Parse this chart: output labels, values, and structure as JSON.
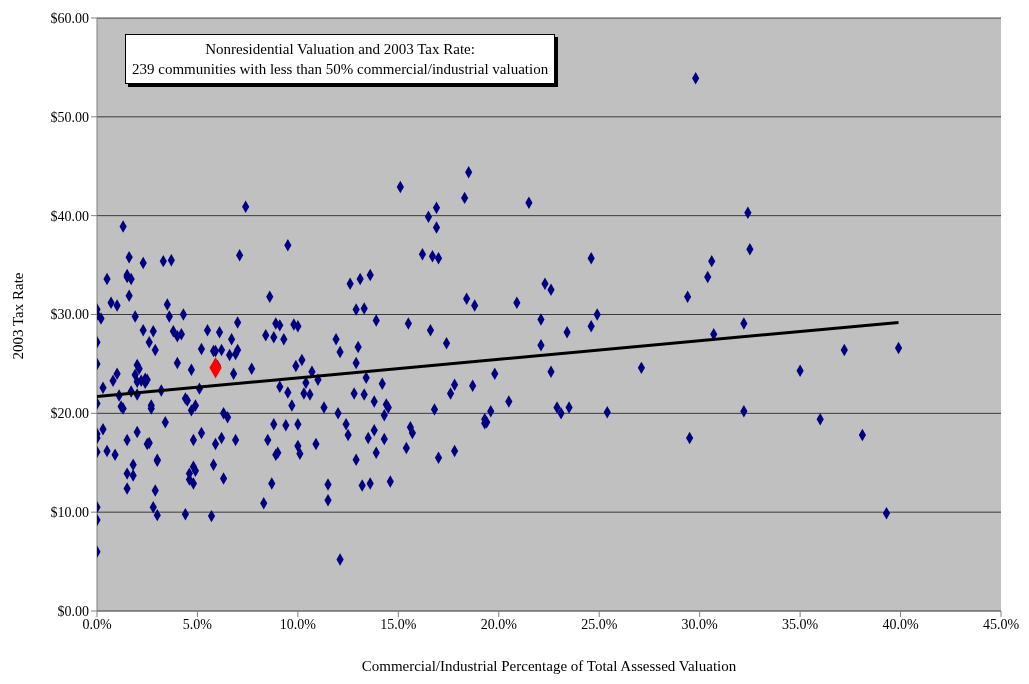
{
  "chart_data": {
    "type": "scatter",
    "title": "Nonresidential Valuation and 2003 Tax Rate:",
    "subtitle": "239 communities with less than 50% commercial/industrial valuation",
    "xlabel": "Commercial/Industrial Percentage of Total Assessed Valuation",
    "ylabel": "2003 Tax Rate",
    "xlim": [
      0,
      45
    ],
    "xticks": [
      {
        "value": 0,
        "label": "0.0%"
      },
      {
        "value": 5,
        "label": "5.0%"
      },
      {
        "value": 10,
        "label": "10.0%"
      },
      {
        "value": 15,
        "label": "15.0%"
      },
      {
        "value": 20,
        "label": "20.0%"
      },
      {
        "value": 25,
        "label": "25.0%"
      },
      {
        "value": 30,
        "label": "30.0%"
      },
      {
        "value": 35,
        "label": "35.0%"
      },
      {
        "value": 40,
        "label": "40.0%"
      },
      {
        "value": 45,
        "label": "45.0%"
      }
    ],
    "ylim": [
      0,
      60
    ],
    "yticks": [
      {
        "value": 0,
        "label": "$0.00"
      },
      {
        "value": 10,
        "label": "$10.00"
      },
      {
        "value": 20,
        "label": "$20.00"
      },
      {
        "value": 30,
        "label": "$30.00"
      },
      {
        "value": 40,
        "label": "$40.00"
      },
      {
        "value": 50,
        "label": "$50.00"
      },
      {
        "value": 60,
        "label": "$60.00"
      }
    ],
    "grid": "y",
    "legend": false,
    "marker": "diamond",
    "series": [
      {
        "color": "#000080",
        "x": [
          0,
          0,
          0,
          0,
          0,
          0,
          0,
          0,
          0,
          0,
          0,
          0.2,
          0.3,
          0.3,
          0.5,
          0.5,
          0.7,
          0.8,
          0.9,
          1.0,
          1.0,
          1.1,
          1.2,
          1.3,
          1.5,
          1.5,
          1.5,
          1.5,
          1.5,
          1.6,
          1.6,
          1.7,
          1.7,
          1.8,
          1.8,
          1.9,
          1.9,
          2.0,
          2.0,
          2.0,
          2.1,
          2.2,
          2.3,
          2.3,
          2.4,
          2.5,
          2.6,
          2.6,
          2.7,
          2.7,
          2.8,
          2.8,
          2.9,
          2.9,
          3.0,
          3.0,
          3.0,
          2.4,
          2.5,
          1.3,
          2.0,
          3.2,
          3.3,
          3.4,
          3.5,
          3.6,
          3.7,
          3.8,
          4.0,
          4.0,
          4.2,
          4.3,
          4.4,
          4.5,
          4.4,
          4.6,
          4.6,
          4.7,
          4.7,
          4.8,
          4.8,
          4.9,
          4.9,
          4.8,
          5.1,
          5.2,
          5.2,
          5.5,
          5.7,
          5.8,
          5.8,
          5.9,
          5.9,
          6.0,
          6.1,
          6.2,
          6.2,
          6.3,
          6.3,
          6.5,
          6.6,
          6.7,
          6.8,
          6.9,
          6.9,
          7.0,
          7.1,
          7.0,
          7.4,
          7.7,
          8.3,
          8.4,
          8.5,
          8.6,
          8.7,
          8.8,
          8.8,
          8.9,
          8.9,
          9.0,
          9.1,
          9.1,
          9.3,
          9.4,
          9.5,
          9.5,
          9.7,
          9.8,
          9.9,
          10.0,
          10.0,
          10.0,
          10.1,
          10.2,
          10.3,
          10.4,
          10.6,
          10.7,
          10.9,
          11.0,
          11.3,
          11.5,
          11.5,
          11.9,
          12.0,
          12.1,
          12.1,
          12.4,
          12.5,
          12.6,
          12.8,
          12.9,
          12.9,
          12.9,
          13.0,
          13.1,
          13.2,
          13.3,
          13.3,
          13.4,
          13.5,
          13.6,
          13.6,
          13.8,
          13.8,
          13.9,
          13.9,
          14.2,
          14.3,
          14.3,
          14.4,
          14.5,
          14.6,
          15.1,
          15.4,
          15.5,
          15.6,
          15.7,
          16.2,
          16.5,
          16.6,
          16.7,
          16.8,
          16.9,
          16.9,
          17.0,
          17.0,
          17.4,
          17.6,
          17.8,
          17.8,
          18.3,
          18.4,
          18.5,
          18.8,
          18.7,
          19.3,
          19.3,
          19.4,
          19.6,
          19.8,
          20.5,
          20.9,
          21.5,
          22.1,
          22.1,
          22.3,
          22.6,
          22.6,
          22.9,
          23.1,
          23.4,
          23.5,
          24.6,
          24.6,
          24.9,
          25.4,
          27.1,
          29.4,
          29.5,
          29.8,
          30.4,
          30.6,
          30.7,
          32.2,
          32.2,
          32.4,
          32.5,
          35.0,
          36.0,
          37.2,
          38.1,
          39.3,
          39.9
        ],
        "values": [
          30.5,
          30.0,
          27.2,
          25.0,
          21.0,
          17.9,
          17.5,
          16.1,
          10.5,
          9.2,
          6.0,
          29.6,
          22.6,
          18.4,
          33.6,
          16.2,
          31.2,
          23.3,
          15.8,
          30.9,
          24.0,
          21.8,
          20.7,
          38.9,
          34.0,
          33.8,
          17.3,
          13.9,
          12.4,
          35.8,
          31.9,
          33.6,
          22.2,
          14.8,
          13.7,
          29.8,
          23.9,
          24.9,
          18.1,
          21.9,
          24.5,
          23.3,
          35.2,
          28.4,
          23.1,
          16.9,
          27.2,
          17.0,
          20.8,
          20.5,
          10.5,
          28.3,
          26.4,
          12.2,
          9.7,
          15.3,
          15.2,
          23.5,
          23.4,
          20.5,
          23.2,
          22.3,
          35.4,
          19.1,
          31.0,
          29.8,
          35.5,
          28.3,
          27.8,
          25.1,
          28.0,
          30.0,
          21.5,
          21.3,
          9.8,
          13.9,
          13.3,
          20.3,
          24.4,
          14.6,
          17.3,
          20.8,
          14.2,
          12.9,
          22.5,
          26.5,
          18.0,
          28.4,
          9.6,
          26.3,
          14.8,
          26.3,
          16.9,
          24.8,
          28.2,
          26.4,
          17.5,
          20.0,
          13.4,
          19.6,
          25.9,
          27.5,
          24.0,
          26.0,
          17.3,
          26.4,
          36.0,
          29.2,
          40.9,
          24.5,
          10.9,
          27.9,
          17.3,
          31.8,
          12.9,
          27.7,
          18.9,
          29.1,
          15.8,
          16.0,
          22.7,
          28.9,
          27.5,
          18.8,
          22.1,
          37.0,
          20.8,
          29.0,
          24.8,
          28.8,
          18.9,
          16.7,
          15.9,
          25.4,
          22.0,
          23.1,
          21.9,
          24.2,
          16.9,
          23.4,
          20.6,
          12.8,
          11.2,
          27.5,
          20.0,
          26.2,
          5.2,
          18.9,
          17.8,
          33.1,
          22.0,
          30.5,
          25.1,
          15.3,
          26.7,
          33.6,
          12.7,
          30.6,
          21.9,
          23.6,
          17.5,
          34.0,
          12.9,
          18.3,
          21.2,
          16.0,
          29.4,
          23.0,
          17.4,
          19.8,
          20.9,
          20.6,
          13.1,
          42.9,
          16.5,
          29.1,
          18.6,
          18.0,
          36.1,
          39.9,
          28.4,
          35.9,
          20.4,
          38.8,
          40.8,
          35.7,
          15.5,
          27.1,
          22.0,
          16.2,
          22.9,
          41.8,
          31.6,
          44.4,
          30.9,
          22.8,
          19.4,
          19.0,
          19.1,
          20.2,
          24.0,
          21.2,
          31.2,
          41.3,
          26.9,
          29.5,
          33.1,
          32.5,
          24.2,
          20.6,
          20.0,
          28.2,
          20.6,
          35.7,
          28.8,
          30.0,
          20.1,
          24.6,
          31.8,
          17.5,
          53.9,
          33.8,
          35.4,
          28.0,
          29.1,
          20.2,
          40.3,
          36.6,
          24.3,
          19.4,
          26.4,
          17.8,
          9.9,
          26.6
        ]
      },
      {
        "color": "#ff0000",
        "x": [
          5.9
        ],
        "values": [
          24.6
        ]
      },
      {
        "type": "line",
        "marker": "none",
        "color": "#000000",
        "x": [
          0,
          39.9
        ],
        "values": [
          21.7,
          29.2
        ]
      }
    ]
  }
}
